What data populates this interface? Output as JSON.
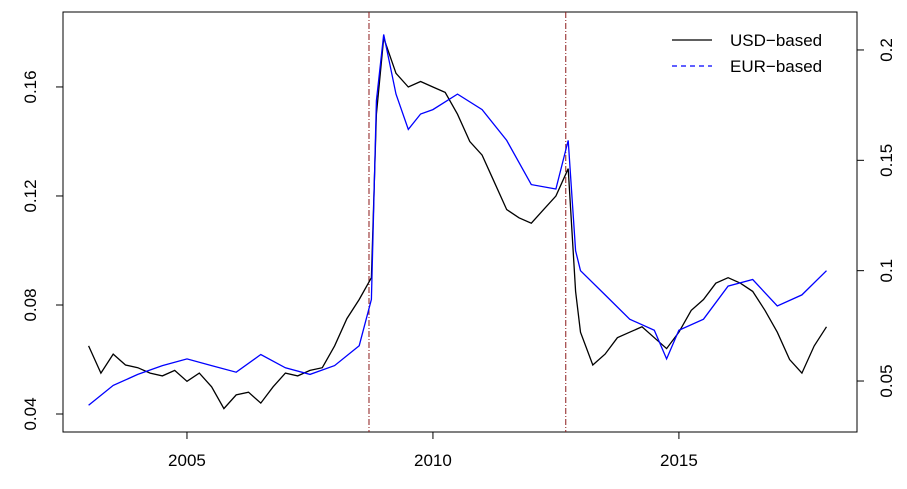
{
  "chart_data": {
    "type": "line",
    "xlim": [
      2002.48,
      2018.62
    ],
    "xticks": [
      2005,
      2010,
      2015
    ],
    "ylim": [
      0.0334,
      0.1875
    ],
    "yticks": [
      0.04,
      0.08,
      0.12,
      0.16
    ],
    "y2lim": [
      0.0269,
      0.2172
    ],
    "y2ticks": [
      0.05,
      0.1,
      0.15,
      0.2
    ],
    "vlines": [
      2008.7,
      2012.7
    ],
    "vline_color": "#8b1a1a",
    "legend": "top-right",
    "series": [
      {
        "name": "USD−based",
        "color": "#000000",
        "linestyle": "solid",
        "x": [
          2003.0,
          2003.25,
          2003.5,
          2003.75,
          2004.0,
          2004.25,
          2004.5,
          2004.75,
          2005.0,
          2005.25,
          2005.5,
          2005.75,
          2006.0,
          2006.25,
          2006.5,
          2006.75,
          2007.0,
          2007.25,
          2007.5,
          2007.75,
          2008.0,
          2008.25,
          2008.5,
          2008.75,
          2008.85,
          2009.0,
          2009.25,
          2009.5,
          2009.75,
          2010.0,
          2010.25,
          2010.5,
          2010.75,
          2011.0,
          2011.25,
          2011.5,
          2011.75,
          2012.0,
          2012.25,
          2012.5,
          2012.75,
          2012.9,
          2013.0,
          2013.25,
          2013.5,
          2013.75,
          2014.0,
          2014.25,
          2014.5,
          2014.75,
          2015.0,
          2015.25,
          2015.5,
          2015.75,
          2016.0,
          2016.25,
          2016.5,
          2016.75,
          2017.0,
          2017.25,
          2017.5,
          2017.75,
          2018.0
        ],
        "values": [
          0.065,
          0.055,
          0.062,
          0.058,
          0.057,
          0.055,
          0.054,
          0.056,
          0.052,
          0.055,
          0.05,
          0.042,
          0.047,
          0.048,
          0.044,
          0.05,
          0.055,
          0.054,
          0.056,
          0.057,
          0.065,
          0.075,
          0.082,
          0.09,
          0.15,
          0.178,
          0.165,
          0.16,
          0.162,
          0.16,
          0.158,
          0.15,
          0.14,
          0.135,
          0.125,
          0.115,
          0.112,
          0.11,
          0.115,
          0.12,
          0.13,
          0.085,
          0.07,
          0.058,
          0.062,
          0.068,
          0.07,
          0.072,
          0.068,
          0.064,
          0.07,
          0.078,
          0.082,
          0.088,
          0.09,
          0.088,
          0.085,
          0.078,
          0.07,
          0.06,
          0.055,
          0.065,
          0.072
        ]
      },
      {
        "name": "EUR−based",
        "color": "#0000ff",
        "linestyle": "dashed",
        "axis": "y2",
        "x": [
          2003.0,
          2003.5,
          2004.0,
          2004.5,
          2005.0,
          2005.5,
          2006.0,
          2006.5,
          2007.0,
          2007.5,
          2008.0,
          2008.5,
          2008.75,
          2008.85,
          2009.0,
          2009.25,
          2009.5,
          2009.75,
          2010.0,
          2010.5,
          2011.0,
          2011.5,
          2012.0,
          2012.5,
          2012.75,
          2012.9,
          2013.0,
          2013.5,
          2014.0,
          2014.5,
          2014.75,
          2015.0,
          2015.5,
          2016.0,
          2016.5,
          2017.0,
          2017.5,
          2018.0
        ],
        "values": [
          0.039,
          0.048,
          0.053,
          0.057,
          0.06,
          0.057,
          0.054,
          0.062,
          0.056,
          0.053,
          0.057,
          0.066,
          0.087,
          0.177,
          0.207,
          0.18,
          0.164,
          0.171,
          0.173,
          0.18,
          0.173,
          0.159,
          0.139,
          0.137,
          0.159,
          0.109,
          0.1,
          0.089,
          0.078,
          0.073,
          0.06,
          0.073,
          0.078,
          0.093,
          0.096,
          0.084,
          0.089,
          0.1
        ]
      }
    ]
  }
}
